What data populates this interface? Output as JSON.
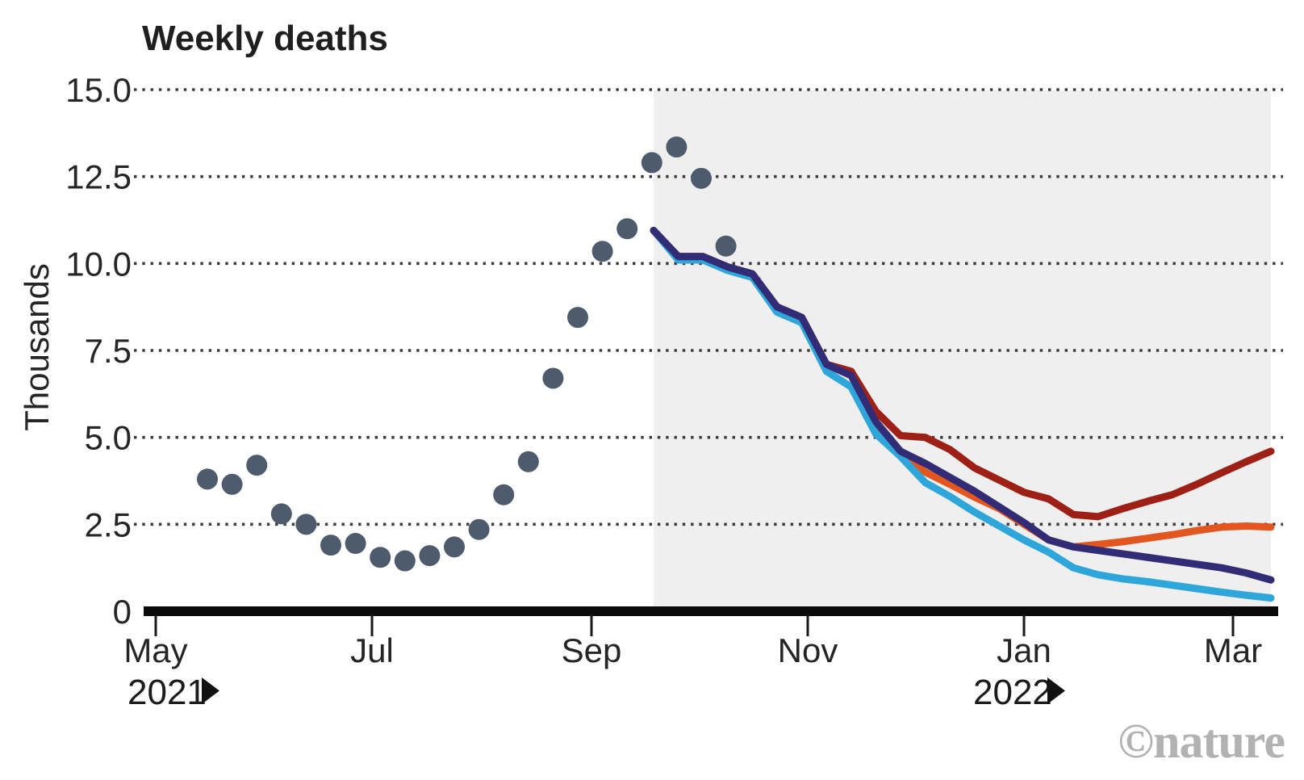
{
  "page": {
    "background": "#ffffff",
    "watermark": "©nature",
    "watermark_color": "#b2b2b2"
  },
  "chart_data": {
    "type": "line+scatter",
    "title": "Weekly deaths",
    "ylabel": "Thousands",
    "ylim": [
      0,
      15
    ],
    "grid": "dotted-horizontal",
    "legend": "none",
    "yticks": [
      {
        "label": "15.0",
        "value": 15
      },
      {
        "label": "12.5",
        "value": 12.5
      },
      {
        "label": "10.0",
        "value": 10
      },
      {
        "label": "7.5",
        "value": 7.5
      },
      {
        "label": "5.0",
        "value": 5
      },
      {
        "label": "2.5",
        "value": 2.5
      },
      {
        "label": "0",
        "value": 0
      }
    ],
    "xticks": [
      "May",
      "Jul",
      "Sep",
      "Nov",
      "Jan",
      "Mar"
    ],
    "year_labels": [
      {
        "text": "2021",
        "under_tick": "May",
        "arrow": "right-triangle"
      },
      {
        "text": "2022",
        "under_tick": "Jan",
        "arrow": "right-triangle"
      }
    ],
    "shaded_region": {
      "color": "#efefef",
      "from_tick_fraction": "just after mid-Sep 2021",
      "to": "right edge (mid-Mar 2022)"
    },
    "observed": {
      "name": "observed-weekly-deaths-dots",
      "marker": "circle",
      "color": "#4d5b6c",
      "cadence": "weekly, starting mid-May 2021",
      "values": [
        3.8,
        3.65,
        4.2,
        2.8,
        2.5,
        1.9,
        1.95,
        1.55,
        1.45,
        1.6,
        1.85,
        2.35,
        3.35,
        4.3,
        6.7,
        8.45,
        10.35,
        11.0,
        12.9,
        13.35,
        12.45,
        10.5
      ]
    },
    "series": [
      {
        "name": "projection-dark-red",
        "color": "#9e1f15",
        "cadence": "weekly, starting late-Sep 2021",
        "values": [
          10.95,
          10.2,
          10.2,
          9.9,
          9.7,
          8.75,
          8.45,
          7.1,
          6.9,
          5.75,
          5.05,
          5.0,
          4.65,
          4.12,
          3.77,
          3.42,
          3.23,
          2.78,
          2.72,
          2.95,
          3.16,
          3.35,
          3.65,
          3.98,
          4.3,
          4.6
        ]
      },
      {
        "name": "projection-orange",
        "color": "#e2571f",
        "cadence": "weekly, starting late-Sep 2021",
        "values": [
          10.95,
          10.2,
          10.2,
          9.9,
          9.7,
          8.75,
          8.45,
          7.1,
          6.78,
          5.45,
          4.5,
          4.0,
          3.65,
          3.28,
          2.95,
          2.5,
          2.05,
          1.85,
          1.92,
          2.0,
          2.1,
          2.2,
          2.32,
          2.42,
          2.45,
          2.42
        ]
      },
      {
        "name": "projection-light-blue",
        "color": "#2ea6da",
        "cadence": "weekly, starting late-Sep 2021",
        "values": [
          10.95,
          10.1,
          10.1,
          9.8,
          9.6,
          8.6,
          8.3,
          6.9,
          6.45,
          5.1,
          4.45,
          3.7,
          3.3,
          2.85,
          2.45,
          2.05,
          1.7,
          1.25,
          1.05,
          0.93,
          0.85,
          0.75,
          0.65,
          0.55,
          0.46,
          0.38
        ]
      },
      {
        "name": "projection-navy",
        "color": "#322b76",
        "cadence": "weekly, starting late-Sep 2021",
        "values": [
          10.95,
          10.2,
          10.2,
          9.9,
          9.7,
          8.75,
          8.45,
          7.1,
          6.78,
          5.45,
          4.6,
          4.25,
          3.85,
          3.45,
          3.0,
          2.55,
          2.05,
          1.85,
          1.75,
          1.65,
          1.55,
          1.45,
          1.35,
          1.25,
          1.1,
          0.9
        ]
      }
    ]
  }
}
